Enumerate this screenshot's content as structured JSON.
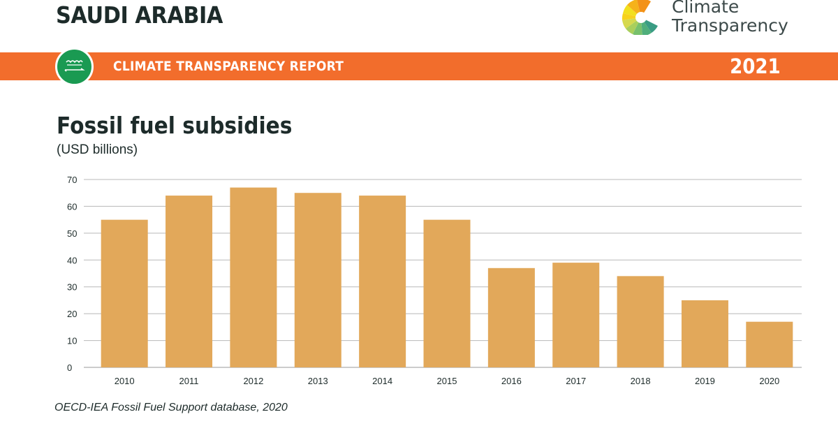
{
  "header": {
    "country": "SAUDI ARABIA",
    "brand_line1": "Climate",
    "brand_line2": "Transparency",
    "banner_title": "CLIMATE TRANSPARENCY REPORT",
    "banner_year": "2021"
  },
  "colors": {
    "banner": "#f26d2c",
    "bar": "#e2a85a",
    "flag": "#1a9a52",
    "grid": "#b8b8b8"
  },
  "chart_data": {
    "type": "bar",
    "title": "Fossil fuel subsidies",
    "subtitle": "(USD billions)",
    "categories": [
      "2010",
      "2011",
      "2012",
      "2013",
      "2014",
      "2015",
      "2016",
      "2017",
      "2018",
      "2019",
      "2020"
    ],
    "values": [
      55,
      64,
      67,
      65,
      64,
      55,
      37,
      39,
      34,
      25,
      17
    ],
    "yticks": [
      "0",
      "10",
      "20",
      "30",
      "40",
      "50",
      "60",
      "70"
    ],
    "ylim": [
      0,
      70
    ],
    "grid": true,
    "legend": "none"
  },
  "source": "OECD-IEA Fossil Fuel Support database, 2020"
}
